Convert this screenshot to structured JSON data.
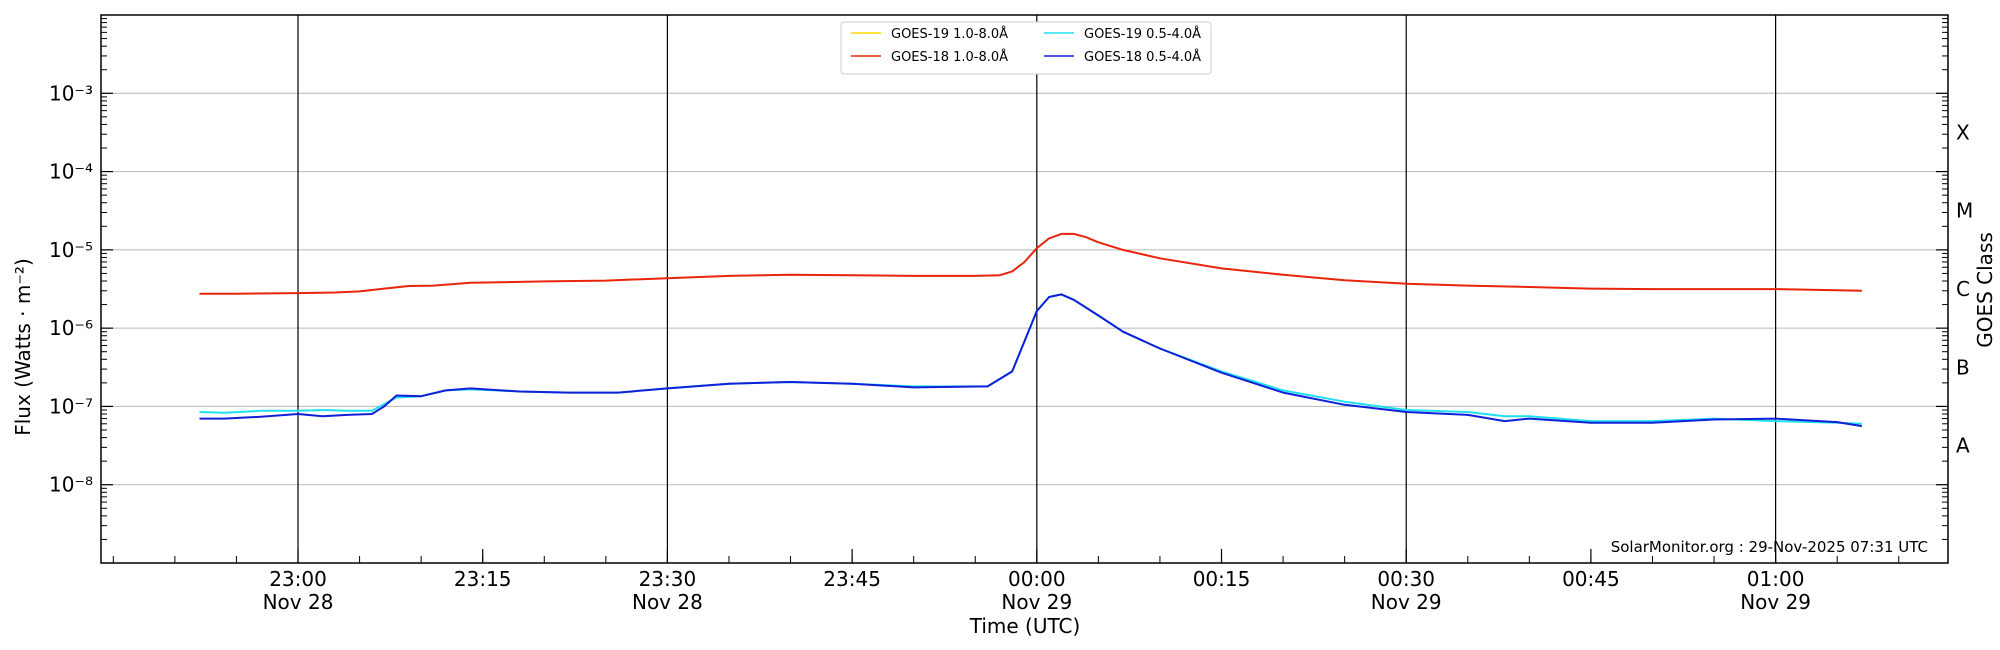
{
  "chart_data": {
    "type": "line",
    "xlabel": "Time (UTC)",
    "ylabel": "Flux (Watts · m⁻²)",
    "right_axis_label": "GOES Class",
    "y_scale": "log",
    "ylim": [
      1e-09,
      0.01
    ],
    "xlim": [
      "2025-11-28T22:44",
      "2025-11-29T01:14"
    ],
    "grid": "horizontal",
    "legend_position": "top-center",
    "y_tick_labels": [
      "10⁻³",
      "10⁻⁴",
      "10⁻⁵",
      "10⁻⁶",
      "10⁻⁷",
      "10⁻⁸"
    ],
    "x_ticks": [
      {
        "time": "2025-11-28T23:00",
        "label": "23:00",
        "sublabel": "Nov 28"
      },
      {
        "time": "2025-11-28T23:15",
        "label": "23:15",
        "sublabel": ""
      },
      {
        "time": "2025-11-28T23:30",
        "label": "23:30",
        "sublabel": "Nov 28"
      },
      {
        "time": "2025-11-28T23:45",
        "label": "23:45",
        "sublabel": ""
      },
      {
        "time": "2025-11-29T00:00",
        "label": "00:00",
        "sublabel": "Nov 29"
      },
      {
        "time": "2025-11-29T00:15",
        "label": "00:15",
        "sublabel": ""
      },
      {
        "time": "2025-11-29T00:30",
        "label": "00:30",
        "sublabel": "Nov 29"
      },
      {
        "time": "2025-11-29T00:45",
        "label": "00:45",
        "sublabel": ""
      },
      {
        "time": "2025-11-29T01:00",
        "label": "01:00",
        "sublabel": "Nov 29"
      }
    ],
    "vertical_lines": [
      "2025-11-28T23:00",
      "2025-11-28T23:30",
      "2025-11-29T00:00",
      "2025-11-29T00:30",
      "2025-11-29T01:00"
    ],
    "goes_classes": [
      {
        "label": "X",
        "flux": 0.0001
      },
      {
        "label": "M",
        "flux": 1e-05
      },
      {
        "label": "C",
        "flux": 1e-06
      },
      {
        "label": "B",
        "flux": 1e-07
      },
      {
        "label": "A",
        "flux": 1e-08
      }
    ],
    "watermark": "SolarMonitor.org : 29-Nov-2025 07:31 UTC",
    "series": [
      {
        "name": "GOES-19 1.0-8.0Å",
        "color": "#ffd700",
        "x": [],
        "y": []
      },
      {
        "name": "GOES-18 1.0-8.0Å",
        "color": "#e8250a",
        "x": [
          "2025-11-28T22:52",
          "2025-11-28T22:55",
          "2025-11-28T23:00",
          "2025-11-28T23:03",
          "2025-11-28T23:05",
          "2025-11-28T23:07",
          "2025-11-28T23:09",
          "2025-11-28T23:11",
          "2025-11-28T23:14",
          "2025-11-28T23:20",
          "2025-11-28T23:25",
          "2025-11-28T23:30",
          "2025-11-28T23:35",
          "2025-11-28T23:40",
          "2025-11-28T23:45",
          "2025-11-28T23:50",
          "2025-11-28T23:55",
          "2025-11-28T23:57",
          "2025-11-28T23:58",
          "2025-11-28T23:59",
          "2025-11-29T00:00",
          "2025-11-29T00:01",
          "2025-11-29T00:02",
          "2025-11-29T00:03",
          "2025-11-29T00:04",
          "2025-11-29T00:05",
          "2025-11-29T00:07",
          "2025-11-29T00:10",
          "2025-11-29T00:15",
          "2025-11-29T00:20",
          "2025-11-29T00:25",
          "2025-11-29T00:30",
          "2025-11-29T00:35",
          "2025-11-29T00:40",
          "2025-11-29T00:45",
          "2025-11-29T00:50",
          "2025-11-29T00:55",
          "2025-11-29T01:00",
          "2025-11-29T01:05",
          "2025-11-29T01:07"
        ],
        "y": [
          2.75e-06,
          2.75e-06,
          2.8e-06,
          2.85e-06,
          2.95e-06,
          3.2e-06,
          3.45e-06,
          3.5e-06,
          3.8e-06,
          3.95e-06,
          4.05e-06,
          4.35e-06,
          4.65e-06,
          4.8e-06,
          4.75e-06,
          4.65e-06,
          4.65e-06,
          4.75e-06,
          5.3e-06,
          7e-06,
          1.05e-05,
          1.4e-05,
          1.6e-05,
          1.6e-05,
          1.45e-05,
          1.25e-05,
          1e-05,
          7.8e-06,
          5.8e-06,
          4.8e-06,
          4.1e-06,
          3.7e-06,
          3.5e-06,
          3.35e-06,
          3.2e-06,
          3.15e-06,
          3.15e-06,
          3.15e-06,
          3.05e-06,
          3e-06
        ]
      },
      {
        "name": "GOES-19 0.5-4.0Å",
        "color": "#20e0f0",
        "x": [
          "2025-11-28T22:52",
          "2025-11-28T22:54",
          "2025-11-28T22:57",
          "2025-11-28T23:00",
          "2025-11-28T23:02",
          "2025-11-28T23:04",
          "2025-11-28T23:06",
          "2025-11-28T23:08",
          "2025-11-28T23:10",
          "2025-11-28T23:12",
          "2025-11-28T23:14",
          "2025-11-28T23:18",
          "2025-11-28T23:22",
          "2025-11-28T23:26",
          "2025-11-28T23:30",
          "2025-11-28T23:35",
          "2025-11-28T23:40",
          "2025-11-28T23:45",
          "2025-11-28T23:50",
          "2025-11-28T23:56",
          "2025-11-28T23:58",
          "2025-11-29T00:00",
          "2025-11-29T00:01",
          "2025-11-29T00:02",
          "2025-11-29T00:03",
          "2025-11-29T00:05",
          "2025-11-29T00:07",
          "2025-11-29T00:10",
          "2025-11-29T00:15",
          "2025-11-29T00:20",
          "2025-11-29T00:25",
          "2025-11-29T00:30",
          "2025-11-29T00:35",
          "2025-11-29T00:38",
          "2025-11-29T00:40",
          "2025-11-29T00:45",
          "2025-11-29T00:50",
          "2025-11-29T00:55",
          "2025-11-29T01:00",
          "2025-11-29T01:05",
          "2025-11-29T01:07"
        ],
        "y": [
          8.5e-08,
          8.3e-08,
          8.8e-08,
          8.8e-08,
          9e-08,
          8.8e-08,
          8.8e-08,
          1.3e-07,
          1.35e-07,
          1.6e-07,
          1.65e-07,
          1.55e-07,
          1.5e-07,
          1.5e-07,
          1.7e-07,
          1.95e-07,
          2.05e-07,
          1.95e-07,
          1.8e-07,
          1.8e-07,
          2.8e-07,
          1.65e-06,
          2.5e-06,
          2.7e-06,
          2.3e-06,
          1.45e-06,
          9e-07,
          5.5e-07,
          2.8e-07,
          1.6e-07,
          1.15e-07,
          9e-08,
          8.5e-08,
          7.5e-08,
          7.5e-08,
          6.5e-08,
          6.5e-08,
          7e-08,
          6.5e-08,
          6.2e-08,
          6e-08
        ]
      },
      {
        "name": "GOES-18 0.5-4.0Å",
        "color": "#1020d8",
        "x": [
          "2025-11-28T22:52",
          "2025-11-28T22:54",
          "2025-11-28T22:57",
          "2025-11-28T23:00",
          "2025-11-28T23:02",
          "2025-11-28T23:04",
          "2025-11-28T23:06",
          "2025-11-28T23:07",
          "2025-11-28T23:08",
          "2025-11-28T23:10",
          "2025-11-28T23:12",
          "2025-11-28T23:14",
          "2025-11-28T23:18",
          "2025-11-28T23:22",
          "2025-11-28T23:26",
          "2025-11-28T23:30",
          "2025-11-28T23:35",
          "2025-11-28T23:40",
          "2025-11-28T23:45",
          "2025-11-28T23:50",
          "2025-11-28T23:56",
          "2025-11-28T23:58",
          "2025-11-29T00:00",
          "2025-11-29T00:01",
          "2025-11-29T00:02",
          "2025-11-29T00:03",
          "2025-11-29T00:05",
          "2025-11-29T00:07",
          "2025-11-29T00:10",
          "2025-11-29T00:15",
          "2025-11-29T00:20",
          "2025-11-29T00:25",
          "2025-11-29T00:30",
          "2025-11-29T00:35",
          "2025-11-29T00:38",
          "2025-11-29T00:40",
          "2025-11-29T00:45",
          "2025-11-29T00:50",
          "2025-11-29T00:55",
          "2025-11-29T01:00",
          "2025-11-29T01:05",
          "2025-11-29T01:07"
        ],
        "y": [
          7e-08,
          7e-08,
          7.4e-08,
          8e-08,
          7.5e-08,
          7.8e-08,
          8e-08,
          1e-07,
          1.38e-07,
          1.35e-07,
          1.6e-07,
          1.7e-07,
          1.55e-07,
          1.5e-07,
          1.5e-07,
          1.7e-07,
          1.95e-07,
          2.05e-07,
          1.95e-07,
          1.75e-07,
          1.8e-07,
          2.8e-07,
          1.65e-06,
          2.5e-06,
          2.7e-06,
          2.3e-06,
          1.45e-06,
          9e-07,
          5.5e-07,
          2.7e-07,
          1.5e-07,
          1.05e-07,
          8.5e-08,
          7.8e-08,
          6.5e-08,
          7e-08,
          6.2e-08,
          6.2e-08,
          6.8e-08,
          7e-08,
          6.3e-08,
          5.6e-08
        ]
      }
    ]
  }
}
